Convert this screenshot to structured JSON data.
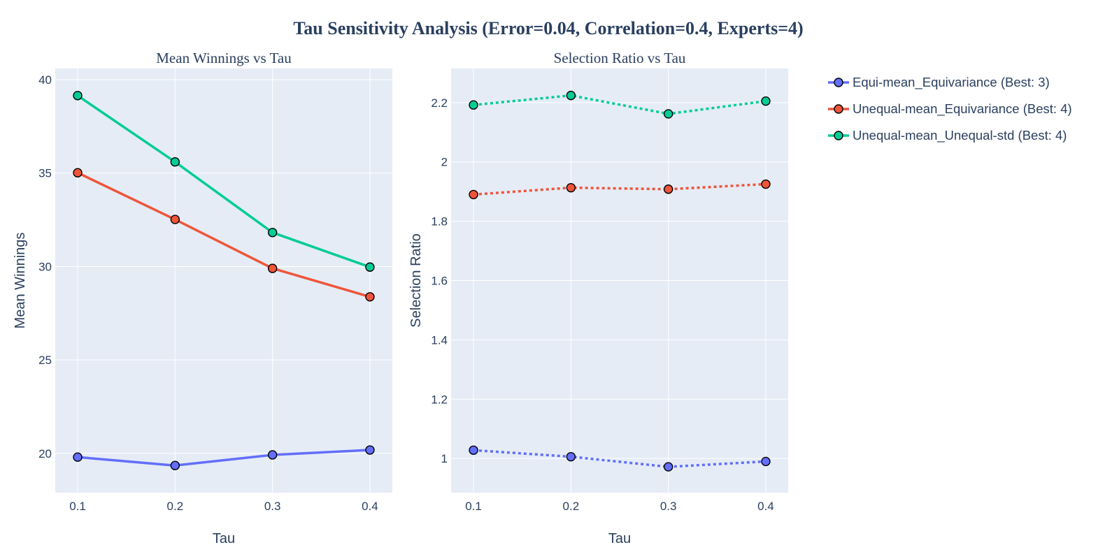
{
  "title": "Tau Sensitivity Analysis (Error=0.04, Correlation=0.4, Experts=4)",
  "colors": {
    "plot_bg": "#E5ECF6",
    "grid": "#FFFFFF",
    "text": "#2A3F5F",
    "marker_edge": "#000000"
  },
  "legend": {
    "placement": "top-right",
    "items": [
      {
        "name": "Equi-mean_Equivariance (Best: 3)",
        "color": "#636EFA"
      },
      {
        "name": "Unequal-mean_Equivariance (Best: 4)",
        "color": "#EF553B"
      },
      {
        "name": "Unequal-mean_Unequal-std (Best: 4)",
        "color": "#00CC96"
      }
    ]
  },
  "chart_data": [
    {
      "type": "line",
      "title": "Mean Winnings vs Tau",
      "xlabel": "Tau",
      "ylabel": "Mean Winnings",
      "line_style": "solid",
      "x": [
        0.1,
        0.2,
        0.3,
        0.4
      ],
      "x_tick_labels": [
        "0.1",
        "0.2",
        "0.3",
        "0.4"
      ],
      "xlim": [
        0.077,
        0.423
      ],
      "ylim": [
        17.9,
        40.6
      ],
      "y_ticks": [
        20,
        25,
        30,
        35,
        40
      ],
      "y_tick_labels": [
        "20",
        "25",
        "30",
        "35",
        "40"
      ],
      "grid": true,
      "series": [
        {
          "name": "Equi-mean_Equivariance (Best: 3)",
          "color": "#636EFA",
          "values": [
            19.8,
            19.35,
            19.92,
            20.18
          ]
        },
        {
          "name": "Unequal-mean_Equivariance (Best: 4)",
          "color": "#EF553B",
          "values": [
            35.02,
            32.52,
            29.9,
            28.38
          ]
        },
        {
          "name": "Unequal-mean_Unequal-std (Best: 4)",
          "color": "#00CC96",
          "values": [
            39.15,
            35.6,
            31.82,
            29.97
          ]
        }
      ]
    },
    {
      "type": "line",
      "title": "Selection Ratio vs Tau",
      "xlabel": "Tau",
      "ylabel": "Selection Ratio",
      "line_style": "dotted",
      "x": [
        0.1,
        0.2,
        0.3,
        0.4
      ],
      "x_tick_labels": [
        "0.1",
        "0.2",
        "0.3",
        "0.4"
      ],
      "xlim": [
        0.077,
        0.423
      ],
      "ylim": [
        0.885,
        2.315
      ],
      "y_ticks": [
        1.0,
        1.2,
        1.4,
        1.6,
        1.8,
        2.0,
        2.2
      ],
      "y_tick_labels": [
        "1",
        "1.2",
        "1.4",
        "1.6",
        "1.8",
        "2",
        "2.2"
      ],
      "grid": true,
      "series": [
        {
          "name": "Equi-mean_Equivariance (Best: 3)",
          "color": "#636EFA",
          "values": [
            1.028,
            1.006,
            0.972,
            0.99
          ]
        },
        {
          "name": "Unequal-mean_Equivariance (Best: 4)",
          "color": "#EF553B",
          "values": [
            1.89,
            1.913,
            1.908,
            1.925
          ]
        },
        {
          "name": "Unequal-mean_Unequal-std (Best: 4)",
          "color": "#00CC96",
          "values": [
            2.192,
            2.224,
            2.162,
            2.205
          ]
        }
      ]
    }
  ]
}
